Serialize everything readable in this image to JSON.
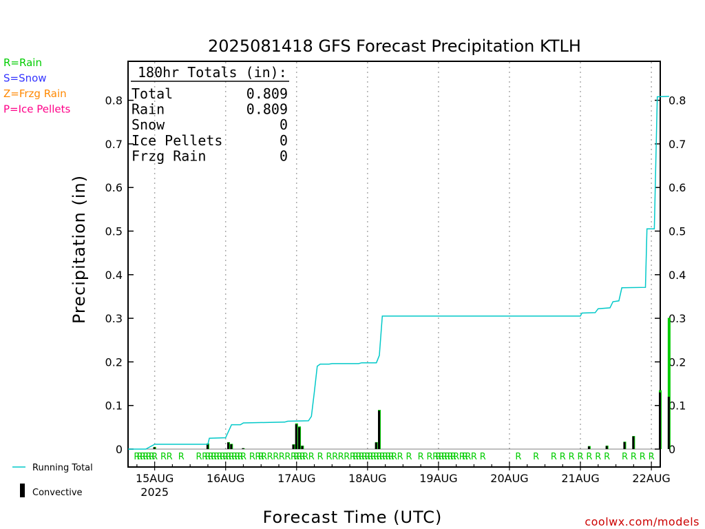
{
  "chart_data": {
    "type": "bar",
    "title": "2025081418 GFS Forecast Precipitation KTLH",
    "xlabel": "Forecast Time (UTC)",
    "ylabel": "Precipitation (in)",
    "ylim": [
      0,
      0.88
    ],
    "xlim_hours": [
      -3,
      177
    ],
    "y_ticks": [
      "0",
      "0.1",
      "0.2",
      "0.3",
      "0.4",
      "0.5",
      "0.6",
      "0.7",
      "0.8"
    ],
    "y_tick_values": [
      0,
      0.1,
      0.2,
      0.3,
      0.4,
      0.5,
      0.6,
      0.7,
      0.8
    ],
    "x_ticks": [
      {
        "label": "15AUG",
        "sublabel": "2025",
        "hour": 6
      },
      {
        "label": "16AUG",
        "sublabel": "",
        "hour": 30
      },
      {
        "label": "17AUG",
        "sublabel": "",
        "hour": 54
      },
      {
        "label": "18AUG",
        "sublabel": "",
        "hour": 78
      },
      {
        "label": "19AUG",
        "sublabel": "",
        "hour": 102
      },
      {
        "label": "20AUG",
        "sublabel": "",
        "hour": 126
      },
      {
        "label": "21AUG",
        "sublabel": "",
        "hour": 150
      },
      {
        "label": "22AUG",
        "sublabel": "",
        "hour": 174
      }
    ],
    "grid": "vertical dotted at day boundaries",
    "legend_top_left": [
      {
        "label": "R=Rain",
        "color": "#00cc00"
      },
      {
        "label": "S=Snow",
        "color": "#3333ff"
      },
      {
        "label": "Z=Frzg Rain",
        "color": "#ff8800"
      },
      {
        "label": "P=Ice Pellets",
        "color": "#ff0088"
      }
    ],
    "legend_bottom_left": [
      {
        "label": "Running Total",
        "color": "#00c8c8",
        "kind": "line"
      },
      {
        "label": "Convective",
        "color": "#000000",
        "kind": "bar"
      }
    ],
    "totals_box": {
      "header": "180hr Totals (in):",
      "rows": [
        {
          "name": "Total",
          "value": "0.809"
        },
        {
          "name": "Rain",
          "value": "0.809"
        },
        {
          "name": "Snow",
          "value": "0"
        },
        {
          "name": "Ice Pellets",
          "value": "0"
        },
        {
          "name": "Frzg Rain",
          "value": "0"
        }
      ]
    },
    "precip_bars": [
      {
        "hour": 6,
        "total": 0.005,
        "convective": 0.004
      },
      {
        "hour": 24,
        "total": 0.013,
        "convective": 0.012
      },
      {
        "hour": 31,
        "total": 0.016,
        "convective": 0.015
      },
      {
        "hour": 32,
        "total": 0.012,
        "convective": 0.011
      },
      {
        "hour": 36,
        "total": 0.002,
        "convective": 0.002
      },
      {
        "hour": 53,
        "total": 0.011,
        "convective": 0.01
      },
      {
        "hour": 54,
        "total": 0.059,
        "convective": 0.057
      },
      {
        "hour": 55,
        "total": 0.052,
        "convective": 0.05
      },
      {
        "hour": 56,
        "total": 0.008,
        "convective": 0.007
      },
      {
        "hour": 81,
        "total": 0.016,
        "convective": 0.015
      },
      {
        "hour": 82,
        "total": 0.09,
        "convective": 0.088
      },
      {
        "hour": 153,
        "total": 0.007,
        "convective": 0.006
      },
      {
        "hour": 159,
        "total": 0.008,
        "convective": 0.007
      },
      {
        "hour": 165,
        "total": 0.017,
        "convective": 0.016
      },
      {
        "hour": 168,
        "total": 0.03,
        "convective": 0.029
      },
      {
        "hour": 177,
        "total": 0.135,
        "convective": 0.13
      },
      {
        "hour": 180,
        "total": 0.301,
        "convective": 0.12
      }
    ],
    "running_total": [
      {
        "hour": -3,
        "value": 0
      },
      {
        "hour": 3,
        "value": 0
      },
      {
        "hour": 6,
        "value": 0.011
      },
      {
        "hour": 24,
        "value": 0.011
      },
      {
        "hour": 24.5,
        "value": 0.025
      },
      {
        "hour": 30,
        "value": 0.026
      },
      {
        "hour": 32,
        "value": 0.056
      },
      {
        "hour": 35,
        "value": 0.056
      },
      {
        "hour": 36,
        "value": 0.06
      },
      {
        "hour": 50,
        "value": 0.062
      },
      {
        "hour": 51,
        "value": 0.064
      },
      {
        "hour": 58,
        "value": 0.065
      },
      {
        "hour": 59,
        "value": 0.075
      },
      {
        "hour": 60,
        "value": 0.13
      },
      {
        "hour": 61,
        "value": 0.19
      },
      {
        "hour": 62,
        "value": 0.195
      },
      {
        "hour": 65,
        "value": 0.195
      },
      {
        "hour": 66,
        "value": 0.196
      },
      {
        "hour": 75,
        "value": 0.196
      },
      {
        "hour": 76,
        "value": 0.198
      },
      {
        "hour": 81,
        "value": 0.198
      },
      {
        "hour": 82,
        "value": 0.215
      },
      {
        "hour": 83,
        "value": 0.305
      },
      {
        "hour": 150,
        "value": 0.305
      },
      {
        "hour": 150.5,
        "value": 0.312
      },
      {
        "hour": 155,
        "value": 0.313
      },
      {
        "hour": 156,
        "value": 0.322
      },
      {
        "hour": 160,
        "value": 0.324
      },
      {
        "hour": 161,
        "value": 0.338
      },
      {
        "hour": 163,
        "value": 0.34
      },
      {
        "hour": 164,
        "value": 0.37
      },
      {
        "hour": 172,
        "value": 0.371
      },
      {
        "hour": 172.5,
        "value": 0.505
      },
      {
        "hour": 175,
        "value": 0.505
      },
      {
        "hour": 176,
        "value": 0.808
      },
      {
        "hour": 180,
        "value": 0.809
      }
    ],
    "precip_type_markers": {
      "label": "R",
      "hours": [
        0,
        1,
        2,
        3,
        4,
        5,
        6,
        9,
        11,
        15,
        21,
        23,
        24,
        25,
        26,
        27,
        28,
        29,
        30,
        31,
        32,
        33,
        34,
        35,
        36,
        39,
        41,
        42,
        43,
        45,
        47,
        49,
        51,
        53,
        54,
        55,
        56,
        57,
        59,
        62,
        65,
        67,
        69,
        71,
        73,
        74,
        75,
        76,
        77,
        78,
        79,
        80,
        81,
        82,
        83,
        84,
        85,
        86,
        87,
        89,
        92,
        96,
        99,
        101,
        102,
        103,
        104,
        105,
        106,
        107,
        108,
        110,
        111,
        112,
        114,
        117,
        129,
        135,
        141,
        144,
        147,
        150,
        153,
        156,
        159,
        165,
        168,
        171,
        174
      ]
    }
  },
  "footer": {
    "credit": "coolwx.com/models"
  }
}
